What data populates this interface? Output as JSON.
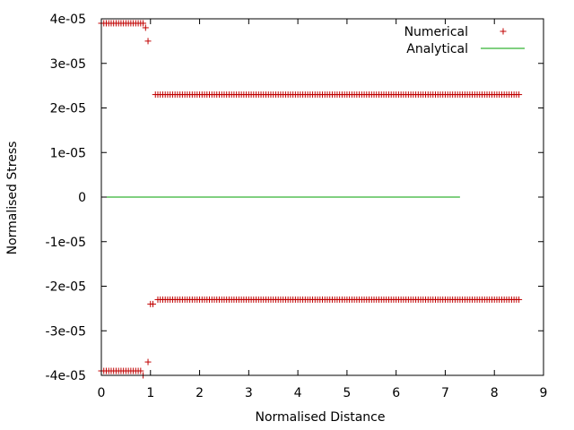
{
  "chart_data": {
    "type": "scatter",
    "xlabel": "Normalised Distance",
    "ylabel": "Normalised Stress",
    "xlim": [
      0,
      9
    ],
    "ylim": [
      -4e-05,
      4e-05
    ],
    "xticks": [
      0,
      1,
      2,
      3,
      4,
      5,
      6,
      7,
      8,
      9
    ],
    "xtick_labels": [
      "0",
      "1",
      "2",
      "3",
      "4",
      "5",
      "6",
      "7",
      "8",
      "9"
    ],
    "yticks": [
      -4e-05,
      -3e-05,
      -2e-05,
      -1e-05,
      0,
      1e-05,
      2e-05,
      3e-05,
      4e-05
    ],
    "ytick_labels": [
      "-4e-05",
      "-3e-05",
      "-2e-05",
      "-1e-05",
      "0",
      "1e-05",
      "2e-05",
      "3e-05",
      "4e-05"
    ],
    "legend_position": "top-right",
    "grid": false,
    "series": [
      {
        "name": "Numerical",
        "kind": "points",
        "marker": "plus",
        "color": "#c00000",
        "groups": [
          {
            "x_start": 0.0,
            "x_end": 0.85,
            "step": 0.05,
            "y": 3.9e-05
          },
          {
            "x_start": 0.0,
            "x_end": 0.8,
            "step": 0.05,
            "y": -3.9e-05
          },
          {
            "x_start": 1.1,
            "x_end": 8.5,
            "step": 0.05,
            "y": 2.3e-05
          },
          {
            "x_start": 1.15,
            "x_end": 8.5,
            "step": 0.05,
            "y": -2.3e-05
          }
        ],
        "points": [
          [
            0.9,
            3.8e-05
          ],
          [
            0.95,
            3.5e-05
          ],
          [
            0.85,
            -4e-05
          ],
          [
            0.95,
            -3.7e-05
          ],
          [
            1.0,
            -2.4e-05
          ],
          [
            1.05,
            -2.4e-05
          ]
        ]
      },
      {
        "name": "Analytical",
        "kind": "line",
        "color": "#00a000",
        "x": [
          0,
          7.3
        ],
        "y": [
          0,
          0
        ]
      }
    ]
  }
}
